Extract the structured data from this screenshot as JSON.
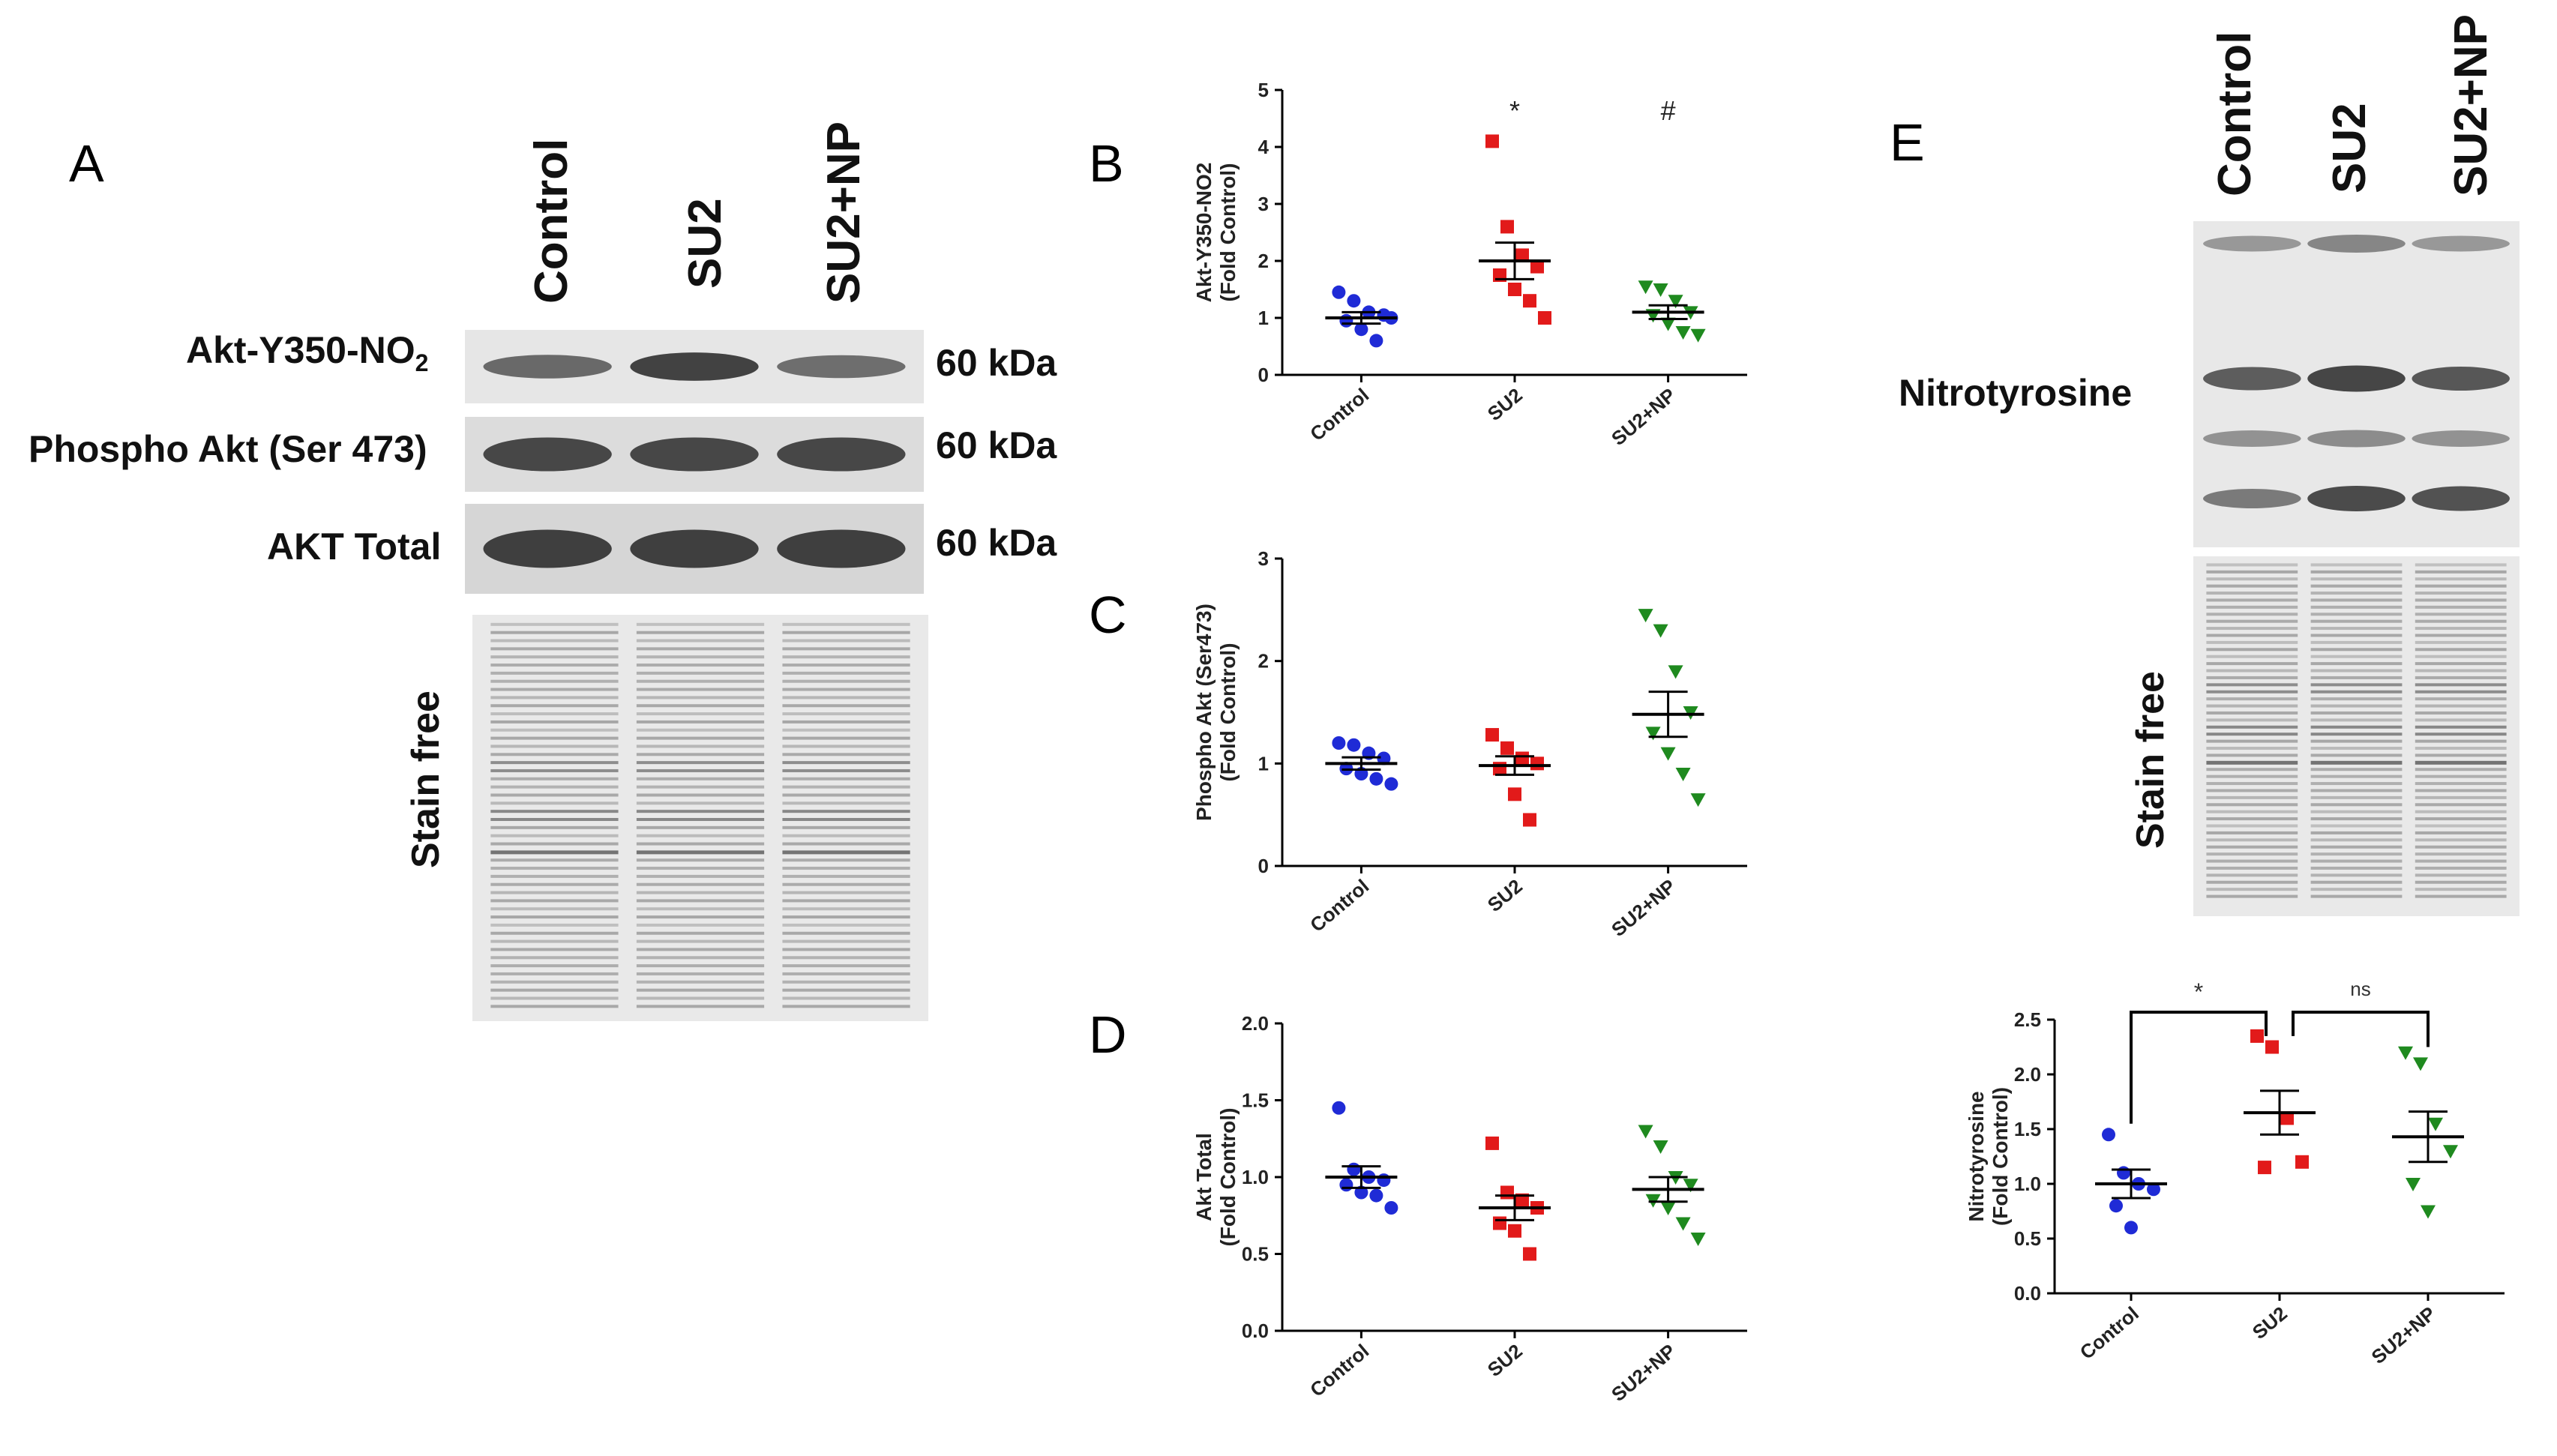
{
  "panels": {
    "A": {
      "letter": "A",
      "lanes": [
        "Control",
        "SU2",
        "SU2+NP"
      ],
      "blots": [
        {
          "label_main": "Akt-Y350-NO",
          "label_sub": "2",
          "size": "60 kDa",
          "intensity": [
            0.55,
            0.9,
            0.5
          ]
        },
        {
          "label_main": "Phospho Akt (Ser 473)",
          "label_sub": "",
          "size": "60 kDa",
          "intensity": [
            0.85,
            0.85,
            0.85
          ]
        },
        {
          "label_main": "AKT Total",
          "label_sub": "",
          "size": "60 kDa",
          "intensity": [
            0.92,
            0.92,
            0.92
          ]
        }
      ],
      "stain_label": "Stain free"
    },
    "E": {
      "letter": "E",
      "lanes": [
        "Control",
        "SU2",
        "SU2+NP"
      ],
      "blot_label": "Nitrotyrosine",
      "stain_label": "Stain free"
    }
  },
  "chart_data": [
    {
      "panel": "B",
      "type": "scatter",
      "ylabel": "Akt-Y350-NO2\n(Fold Control)",
      "ylim": [
        0,
        5
      ],
      "yticks": [
        "0",
        "1",
        "2",
        "3",
        "4",
        "5"
      ],
      "categories": [
        "Control",
        "SU2",
        "SU2+NP"
      ],
      "colors": [
        "#1f2bd6",
        "#e21a1a",
        "#1f8a1f"
      ],
      "markers": [
        "circle",
        "square",
        "triangle"
      ],
      "points": [
        [
          1.45,
          1.3,
          1.1,
          1.05,
          0.95,
          0.8,
          0.6,
          1.0
        ],
        [
          4.1,
          2.6,
          2.1,
          1.9,
          1.75,
          1.5,
          1.3,
          1.0
        ],
        [
          1.55,
          1.5,
          1.3,
          1.1,
          1.05,
          0.9,
          0.75,
          0.7
        ]
      ],
      "means": [
        1.0,
        2.0,
        1.1
      ],
      "sems": [
        0.1,
        0.32,
        0.12
      ],
      "annotations": [
        "",
        "*",
        "#"
      ]
    },
    {
      "panel": "C",
      "type": "scatter",
      "ylabel": "Phospho Akt (Ser473)\n(Fold Control)",
      "ylim": [
        0,
        3
      ],
      "yticks": [
        "0",
        "1",
        "2",
        "3"
      ],
      "categories": [
        "Control",
        "SU2",
        "SU2+NP"
      ],
      "colors": [
        "#1f2bd6",
        "#e21a1a",
        "#1f8a1f"
      ],
      "markers": [
        "circle",
        "square",
        "triangle"
      ],
      "points": [
        [
          1.2,
          1.18,
          1.1,
          1.05,
          0.95,
          0.9,
          0.85,
          0.8
        ],
        [
          1.28,
          1.15,
          1.05,
          1.0,
          0.95,
          0.7,
          0.45
        ],
        [
          2.45,
          2.3,
          1.9,
          1.5,
          1.3,
          1.1,
          0.9,
          0.65
        ]
      ],
      "means": [
        1.0,
        0.98,
        1.48
      ],
      "sems": [
        0.06,
        0.09,
        0.22
      ],
      "annotations": [
        "",
        "",
        ""
      ]
    },
    {
      "panel": "D",
      "type": "scatter",
      "ylabel": "Akt Total\n(Fold Control)",
      "ylim": [
        0,
        2
      ],
      "yticks": [
        "0.0",
        "0.5",
        "1.0",
        "1.5",
        "2.0"
      ],
      "categories": [
        "Control",
        "SU2",
        "SU2+NP"
      ],
      "colors": [
        "#1f2bd6",
        "#e21a1a",
        "#1f8a1f"
      ],
      "markers": [
        "circle",
        "square",
        "triangle"
      ],
      "points": [
        [
          1.45,
          1.05,
          1.0,
          0.98,
          0.95,
          0.9,
          0.88,
          0.8
        ],
        [
          1.22,
          0.9,
          0.85,
          0.8,
          0.7,
          0.65,
          0.5
        ],
        [
          1.3,
          1.2,
          1.0,
          0.95,
          0.85,
          0.8,
          0.7,
          0.6
        ]
      ],
      "means": [
        1.0,
        0.8,
        0.92
      ],
      "sems": [
        0.07,
        0.08,
        0.08
      ],
      "annotations": [
        "",
        "",
        ""
      ]
    },
    {
      "panel": "E",
      "type": "scatter",
      "ylabel": "Nitrotyrosine\n(Fold Control)",
      "ylim": [
        0,
        2.5
      ],
      "yticks": [
        "0.0",
        "0.5",
        "1.0",
        "1.5",
        "2.0",
        "2.5"
      ],
      "categories": [
        "Control",
        "SU2",
        "SU2+NP"
      ],
      "colors": [
        "#1f2bd6",
        "#e21a1a",
        "#1f8a1f"
      ],
      "markers": [
        "circle",
        "square",
        "triangle"
      ],
      "points": [
        [
          1.45,
          1.1,
          1.0,
          0.95,
          0.8,
          0.6
        ],
        [
          2.35,
          2.25,
          1.6,
          1.2,
          1.15
        ],
        [
          2.2,
          2.1,
          1.55,
          1.3,
          1.0,
          0.75
        ]
      ],
      "means": [
        1.0,
        1.65,
        1.43
      ],
      "sems": [
        0.13,
        0.2,
        0.23
      ],
      "annotations": [],
      "brackets": [
        {
          "from": 0,
          "to": 1,
          "label": "*"
        },
        {
          "from": 1,
          "to": 2,
          "label": "ns"
        }
      ]
    }
  ]
}
